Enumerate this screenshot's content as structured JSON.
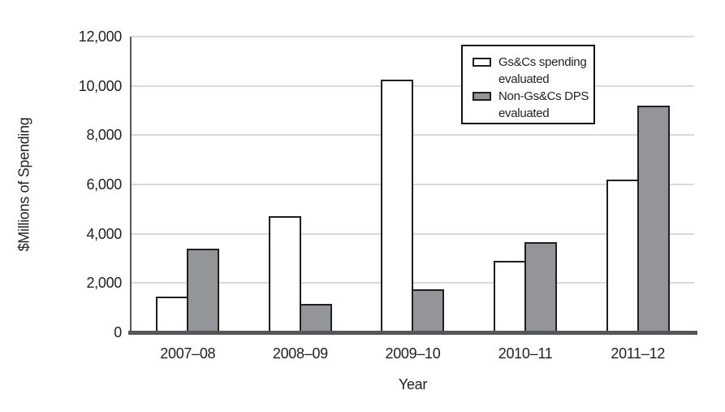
{
  "chart_data": {
    "type": "bar",
    "title": "",
    "xlabel": "Year",
    "ylabel": "$Millions of Spending",
    "ylim": [
      0,
      12000
    ],
    "ytick_interval": 2000,
    "grid": "horizontal",
    "legend_position": "top-right",
    "yticks": [
      {
        "value": 0,
        "label": "0"
      },
      {
        "value": 2000,
        "label": "2,000"
      },
      {
        "value": 4000,
        "label": "4,000"
      },
      {
        "value": 6000,
        "label": "6,000"
      },
      {
        "value": 8000,
        "label": "8,000"
      },
      {
        "value": 10000,
        "label": "10,000"
      },
      {
        "value": 12000,
        "label": "12,000"
      }
    ],
    "categories": [
      "2007–08",
      "2008–09",
      "2009–10",
      "2010–11",
      "2011–12"
    ],
    "series": [
      {
        "name": "Gs&Cs spending evaluated",
        "color": "#ffffff",
        "values": [
          1450,
          4700,
          10250,
          2900,
          6200
        ]
      },
      {
        "name": "Non-Gs&Cs DPS evaluated",
        "color": "#939598",
        "values": [
          3400,
          1150,
          1750,
          3650,
          9200
        ]
      }
    ]
  },
  "colors": {
    "bar_border": "#1f1f1f",
    "axis_line": "#55565a",
    "gridline": "#dadada",
    "legend_border": "#141414",
    "text": "#231f20",
    "background": "#ffffff"
  }
}
